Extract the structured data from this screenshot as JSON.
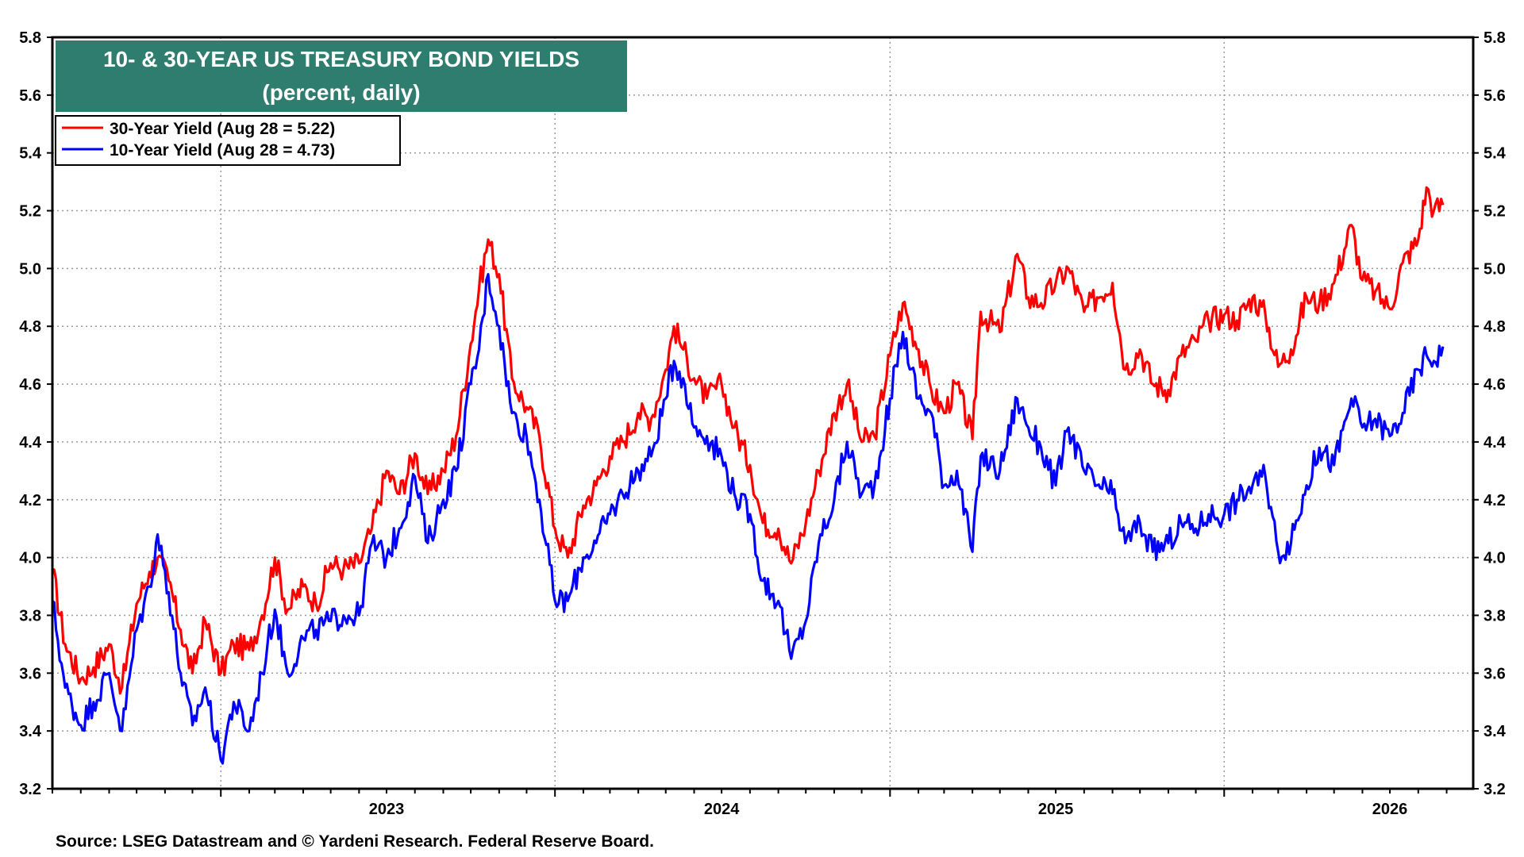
{
  "chart_data": {
    "type": "line",
    "title": "10- & 30-YEAR US TREASURY BOND YIELDS",
    "subtitle": "(percent, daily)",
    "source": "Source: LSEG Datastream and © Yardeni Research. Federal Reserve Board.",
    "ylim": [
      3.2,
      5.8
    ],
    "y_ticks": [
      "3.2",
      "3.4",
      "3.6",
      "3.8",
      "4.0",
      "4.2",
      "4.4",
      "4.6",
      "4.8",
      "5.0",
      "5.2",
      "5.4",
      "5.6",
      "5.8"
    ],
    "x_range": [
      "2022-07-01",
      "2026-09-30"
    ],
    "x_labels": [
      {
        "label": "2023",
        "date": "2023-07-01"
      },
      {
        "label": "2024",
        "date": "2024-07-01"
      },
      {
        "label": "2025",
        "date": "2025-07-01"
      },
      {
        "label": "2026",
        "date": "2026-07-01"
      }
    ],
    "x_gridlines": [
      "2023-01-01",
      "2024-01-01",
      "2025-01-01",
      "2026-01-01"
    ],
    "grid": "dotted",
    "legend_position": "top-left",
    "series": [
      {
        "name": "30-Year Yield (Aug 28 = 5.22)",
        "color": "#ff0000",
        "points": [
          [
            "2022-07-01",
            3.96
          ],
          [
            "2022-07-15",
            3.7
          ],
          [
            "2022-08-01",
            3.58
          ],
          [
            "2022-08-15",
            3.62
          ],
          [
            "2022-09-01",
            3.7
          ],
          [
            "2022-09-15",
            3.55
          ],
          [
            "2022-10-01",
            3.84
          ],
          [
            "2022-10-15",
            3.95
          ],
          [
            "2022-10-24",
            4.0
          ],
          [
            "2022-11-05",
            3.92
          ],
          [
            "2022-11-18",
            3.75
          ],
          [
            "2022-12-01",
            3.6
          ],
          [
            "2022-12-15",
            3.78
          ],
          [
            "2023-01-01",
            3.6
          ],
          [
            "2023-01-15",
            3.7
          ],
          [
            "2023-02-01",
            3.68
          ],
          [
            "2023-02-15",
            3.8
          ],
          [
            "2023-03-01",
            4.0
          ],
          [
            "2023-03-15",
            3.82
          ],
          [
            "2023-04-01",
            3.9
          ],
          [
            "2023-04-15",
            3.84
          ],
          [
            "2023-05-01",
            3.98
          ],
          [
            "2023-05-15",
            3.96
          ],
          [
            "2023-06-01",
            3.98
          ],
          [
            "2023-06-15",
            4.1
          ],
          [
            "2023-07-01",
            4.3
          ],
          [
            "2023-07-15",
            4.22
          ],
          [
            "2023-08-01",
            4.36
          ],
          [
            "2023-08-15",
            4.22
          ],
          [
            "2023-09-01",
            4.3
          ],
          [
            "2023-09-15",
            4.42
          ],
          [
            "2023-10-01",
            4.74
          ],
          [
            "2023-10-10",
            4.93
          ],
          [
            "2023-10-20",
            5.1
          ],
          [
            "2023-11-01",
            4.98
          ],
          [
            "2023-11-15",
            4.62
          ],
          [
            "2023-12-01",
            4.52
          ],
          [
            "2023-12-15",
            4.42
          ],
          [
            "2024-01-01",
            4.1
          ],
          [
            "2024-01-15",
            4.0
          ],
          [
            "2024-02-01",
            4.18
          ],
          [
            "2024-02-15",
            4.25
          ],
          [
            "2024-03-01",
            4.35
          ],
          [
            "2024-03-15",
            4.4
          ],
          [
            "2024-04-01",
            4.5
          ],
          [
            "2024-04-15",
            4.48
          ],
          [
            "2024-05-01",
            4.65
          ],
          [
            "2024-05-10",
            4.8
          ],
          [
            "2024-05-20",
            4.72
          ],
          [
            "2024-06-01",
            4.62
          ],
          [
            "2024-06-15",
            4.55
          ],
          [
            "2024-07-01",
            4.6
          ],
          [
            "2024-07-15",
            4.45
          ],
          [
            "2024-08-01",
            4.32
          ],
          [
            "2024-08-15",
            4.12
          ],
          [
            "2024-09-01",
            4.1
          ],
          [
            "2024-09-15",
            3.98
          ],
          [
            "2024-10-01",
            4.12
          ],
          [
            "2024-10-15",
            4.3
          ],
          [
            "2024-11-01",
            4.5
          ],
          [
            "2024-11-15",
            4.6
          ],
          [
            "2024-12-01",
            4.4
          ],
          [
            "2024-12-15",
            4.42
          ],
          [
            "2025-01-01",
            4.7
          ],
          [
            "2025-01-15",
            4.88
          ],
          [
            "2025-02-01",
            4.72
          ],
          [
            "2025-02-15",
            4.58
          ],
          [
            "2025-03-01",
            4.5
          ],
          [
            "2025-03-15",
            4.6
          ],
          [
            "2025-04-01",
            4.41
          ],
          [
            "2025-04-10",
            4.85
          ],
          [
            "2025-05-01",
            4.78
          ],
          [
            "2025-05-20",
            5.05
          ],
          [
            "2025-06-01",
            4.9
          ],
          [
            "2025-06-15",
            4.88
          ],
          [
            "2025-07-01",
            4.95
          ],
          [
            "2025-07-15",
            5.0
          ],
          [
            "2025-08-01",
            4.85
          ],
          [
            "2025-08-15",
            4.9
          ],
          [
            "2025-09-01",
            4.95
          ],
          [
            "2025-09-15",
            4.65
          ],
          [
            "2025-10-01",
            4.72
          ],
          [
            "2025-10-15",
            4.6
          ],
          [
            "2025-11-01",
            4.58
          ],
          [
            "2025-11-15",
            4.7
          ],
          [
            "2025-12-01",
            4.75
          ],
          [
            "2025-12-15",
            4.82
          ],
          [
            "2026-01-01",
            4.84
          ],
          [
            "2026-01-15",
            4.82
          ],
          [
            "2026-02-01",
            4.9
          ],
          [
            "2026-02-15",
            4.84
          ],
          [
            "2026-03-01",
            4.66
          ],
          [
            "2026-03-15",
            4.72
          ],
          [
            "2026-04-01",
            4.9
          ],
          [
            "2026-04-15",
            4.88
          ],
          [
            "2026-05-01",
            4.95
          ],
          [
            "2026-05-20",
            5.15
          ],
          [
            "2026-06-01",
            4.96
          ],
          [
            "2026-06-15",
            4.92
          ],
          [
            "2026-07-01",
            4.86
          ],
          [
            "2026-07-15",
            5.02
          ],
          [
            "2026-08-01",
            5.1
          ],
          [
            "2026-08-10",
            5.28
          ],
          [
            "2026-08-18",
            5.2
          ],
          [
            "2026-08-28",
            5.22
          ]
        ]
      },
      {
        "name": "10-Year Yield (Aug 28 = 4.73)",
        "color": "#0000ff",
        "points": [
          [
            "2022-07-01",
            3.85
          ],
          [
            "2022-07-15",
            3.55
          ],
          [
            "2022-08-01",
            3.42
          ],
          [
            "2022-08-15",
            3.5
          ],
          [
            "2022-09-01",
            3.6
          ],
          [
            "2022-09-15",
            3.4
          ],
          [
            "2022-10-01",
            3.75
          ],
          [
            "2022-10-15",
            3.9
          ],
          [
            "2022-10-24",
            4.08
          ],
          [
            "2022-11-05",
            3.88
          ],
          [
            "2022-11-18",
            3.6
          ],
          [
            "2022-12-01",
            3.42
          ],
          [
            "2022-12-15",
            3.55
          ],
          [
            "2023-01-01",
            3.3
          ],
          [
            "2023-01-15",
            3.5
          ],
          [
            "2023-02-01",
            3.4
          ],
          [
            "2023-02-15",
            3.6
          ],
          [
            "2023-03-01",
            3.82
          ],
          [
            "2023-03-15",
            3.6
          ],
          [
            "2023-04-01",
            3.72
          ],
          [
            "2023-04-15",
            3.75
          ],
          [
            "2023-05-01",
            3.78
          ],
          [
            "2023-05-15",
            3.8
          ],
          [
            "2023-06-01",
            3.8
          ],
          [
            "2023-06-15",
            4.05
          ],
          [
            "2023-07-01",
            4.0
          ],
          [
            "2023-07-15",
            4.1
          ],
          [
            "2023-08-01",
            4.28
          ],
          [
            "2023-08-15",
            4.05
          ],
          [
            "2023-09-01",
            4.2
          ],
          [
            "2023-09-15",
            4.3
          ],
          [
            "2023-10-01",
            4.6
          ],
          [
            "2023-10-10",
            4.72
          ],
          [
            "2023-10-20",
            4.98
          ],
          [
            "2023-11-01",
            4.8
          ],
          [
            "2023-11-15",
            4.5
          ],
          [
            "2023-12-01",
            4.42
          ],
          [
            "2023-12-15",
            4.2
          ],
          [
            "2024-01-01",
            3.85
          ],
          [
            "2024-01-15",
            3.85
          ],
          [
            "2024-02-01",
            4.0
          ],
          [
            "2024-02-15",
            4.05
          ],
          [
            "2024-03-01",
            4.15
          ],
          [
            "2024-03-15",
            4.22
          ],
          [
            "2024-04-01",
            4.3
          ],
          [
            "2024-04-15",
            4.35
          ],
          [
            "2024-05-01",
            4.55
          ],
          [
            "2024-05-10",
            4.68
          ],
          [
            "2024-05-20",
            4.62
          ],
          [
            "2024-06-01",
            4.45
          ],
          [
            "2024-06-15",
            4.42
          ],
          [
            "2024-07-01",
            4.35
          ],
          [
            "2024-07-15",
            4.22
          ],
          [
            "2024-08-01",
            4.15
          ],
          [
            "2024-08-15",
            3.92
          ],
          [
            "2024-09-01",
            3.85
          ],
          [
            "2024-09-15",
            3.65
          ],
          [
            "2024-10-01",
            3.78
          ],
          [
            "2024-10-15",
            4.05
          ],
          [
            "2024-11-01",
            4.2
          ],
          [
            "2024-11-15",
            4.4
          ],
          [
            "2024-12-01",
            4.22
          ],
          [
            "2024-12-15",
            4.25
          ],
          [
            "2025-01-01",
            4.55
          ],
          [
            "2025-01-15",
            4.78
          ],
          [
            "2025-02-01",
            4.55
          ],
          [
            "2025-02-15",
            4.5
          ],
          [
            "2025-03-01",
            4.25
          ],
          [
            "2025-03-15",
            4.3
          ],
          [
            "2025-04-01",
            4.02
          ],
          [
            "2025-04-10",
            4.35
          ],
          [
            "2025-05-01",
            4.3
          ],
          [
            "2025-05-20",
            4.55
          ],
          [
            "2025-06-01",
            4.45
          ],
          [
            "2025-06-15",
            4.38
          ],
          [
            "2025-07-01",
            4.25
          ],
          [
            "2025-07-15",
            4.45
          ],
          [
            "2025-08-01",
            4.3
          ],
          [
            "2025-08-15",
            4.25
          ],
          [
            "2025-09-01",
            4.22
          ],
          [
            "2025-09-15",
            4.05
          ],
          [
            "2025-10-01",
            4.12
          ],
          [
            "2025-10-15",
            4.02
          ],
          [
            "2025-11-01",
            4.05
          ],
          [
            "2025-11-15",
            4.12
          ],
          [
            "2025-12-01",
            4.1
          ],
          [
            "2025-12-15",
            4.15
          ],
          [
            "2026-01-01",
            4.15
          ],
          [
            "2026-01-15",
            4.2
          ],
          [
            "2026-02-01",
            4.25
          ],
          [
            "2026-02-15",
            4.28
          ],
          [
            "2026-03-01",
            4.02
          ],
          [
            "2026-03-15",
            4.05
          ],
          [
            "2026-04-01",
            4.25
          ],
          [
            "2026-04-15",
            4.38
          ],
          [
            "2026-05-01",
            4.32
          ],
          [
            "2026-05-20",
            4.55
          ],
          [
            "2026-06-01",
            4.45
          ],
          [
            "2026-06-15",
            4.48
          ],
          [
            "2026-07-01",
            4.42
          ],
          [
            "2026-07-15",
            4.5
          ],
          [
            "2026-08-01",
            4.65
          ],
          [
            "2026-08-10",
            4.7
          ],
          [
            "2026-08-18",
            4.68
          ],
          [
            "2026-08-28",
            4.73
          ]
        ]
      }
    ]
  }
}
